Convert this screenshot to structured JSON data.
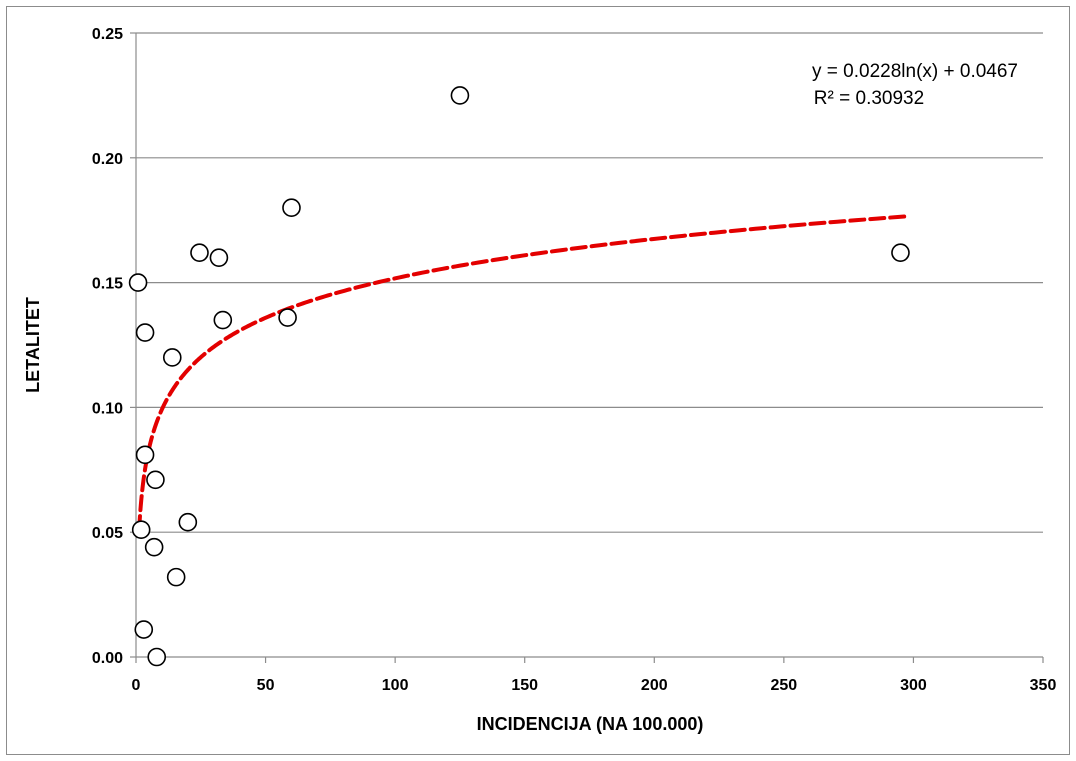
{
  "chart_data": {
    "type": "scatter",
    "title": "",
    "xlabel": "INCIDENCIJA (NA 100.000)",
    "ylabel": "LETALITET",
    "xlim": [
      0,
      350
    ],
    "ylim": [
      0,
      0.25
    ],
    "xticks": [
      "0",
      "50",
      "100",
      "150",
      "200",
      "250",
      "300",
      "350"
    ],
    "yticks": [
      "0.00",
      "0.05",
      "0.10",
      "0.15",
      "0.20",
      "0.25"
    ],
    "grid": "horizontal",
    "points": [
      {
        "x": 0.8,
        "y": 0.15
      },
      {
        "x": 3.5,
        "y": 0.13
      },
      {
        "x": 14,
        "y": 0.12
      },
      {
        "x": 3.5,
        "y": 0.081
      },
      {
        "x": 7.5,
        "y": 0.071
      },
      {
        "x": 2,
        "y": 0.051
      },
      {
        "x": 7,
        "y": 0.044
      },
      {
        "x": 20,
        "y": 0.054
      },
      {
        "x": 15.5,
        "y": 0.032
      },
      {
        "x": 3,
        "y": 0.011
      },
      {
        "x": 8,
        "y": 0.0
      },
      {
        "x": 24.5,
        "y": 0.162
      },
      {
        "x": 32,
        "y": 0.16
      },
      {
        "x": 33.5,
        "y": 0.135
      },
      {
        "x": 58.5,
        "y": 0.136
      },
      {
        "x": 60,
        "y": 0.18
      },
      {
        "x": 125,
        "y": 0.225
      },
      {
        "x": 295,
        "y": 0.162
      }
    ],
    "trendline": {
      "type": "logarithmic",
      "a": 0.0228,
      "b": 0.0467,
      "x_range": [
        1.2,
        298
      ],
      "color": "#e30000",
      "style": "dashed"
    },
    "annotations": {
      "equation": "y = 0.0228ln(x) + 0.0467",
      "r_squared": "R² = 0.30932"
    },
    "colors": {
      "marker_fill": "#ffffff",
      "marker_stroke": "#000000",
      "gridline": "#8c8c8c",
      "trendline": "#e30000"
    }
  }
}
